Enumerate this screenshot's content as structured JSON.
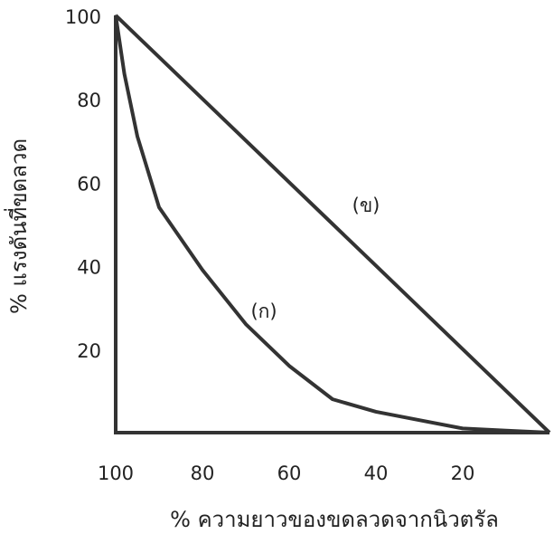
{
  "chart_data": {
    "type": "line",
    "x_label": "% ความยาวของขดลวดจากนิวตรัล",
    "y_label": "% แรงดันที่ขดลวด",
    "x": [
      100,
      98,
      95,
      90,
      80,
      70,
      60,
      50,
      40,
      30,
      20,
      10,
      0
    ],
    "series": [
      {
        "name": "(ก)",
        "color": "#333333",
        "values": [
          100,
          86,
          71,
          54,
          39,
          26,
          16,
          8,
          5,
          3,
          1,
          0.5,
          0
        ]
      },
      {
        "name": "(ข)",
        "color": "#333333",
        "values": [
          100,
          98,
          95,
          90,
          80,
          70,
          60,
          50,
          40,
          30,
          20,
          10,
          0
        ]
      }
    ],
    "xlim": [
      100,
      0
    ],
    "ylim": [
      0,
      100
    ],
    "xticks": [
      100,
      80,
      60,
      40,
      20
    ],
    "yticks": [
      20,
      40,
      60,
      80,
      100
    ],
    "legend": false
  }
}
